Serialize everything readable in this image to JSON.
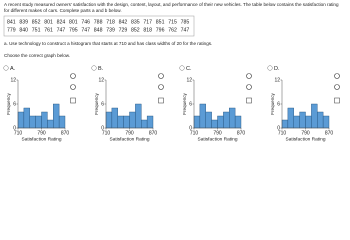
{
  "question": {
    "intro": [
      "A recent study measured owners' satisfaction with the design, content, layout, and performance of their new vehicles. The table below contains the satisfaction rating",
      "for different makes of cars. Complete parts a and b below."
    ],
    "table": {
      "rows": [
        [
          841,
          839,
          852,
          801,
          824,
          801,
          746,
          788,
          718,
          842,
          835,
          717,
          851,
          715,
          785
        ],
        [
          779,
          840,
          751,
          761,
          747,
          795,
          747,
          848,
          739,
          729,
          852,
          818,
          796,
          762,
          747
        ]
      ]
    },
    "part_a": "a. Use technology to construct a histogram that starts at 710 and has class widths of 20 for the ratings.",
    "choose": "Choose the correct graph below."
  },
  "chart_data": [
    {
      "type": "histogram",
      "label": "A.",
      "xlabel": "Satisfaction Rating",
      "ylabel": "Frequency",
      "bins": [
        710,
        730,
        750,
        770,
        790,
        810,
        830,
        850,
        870
      ],
      "values": [
        4,
        5,
        3,
        3,
        4,
        2,
        6,
        3
      ],
      "color": "#5b9bd5",
      "xlim": [
        710,
        870
      ],
      "xticks": [
        710,
        790,
        870
      ],
      "ylim": [
        0,
        12
      ],
      "yticks": [
        0,
        6,
        12
      ]
    },
    {
      "type": "histogram",
      "label": "B.",
      "xlabel": "Satisfaction Rating",
      "ylabel": "Frequency",
      "bins": [
        710,
        730,
        750,
        770,
        790,
        810,
        830,
        850,
        870
      ],
      "values": [
        4,
        5,
        3,
        3,
        4,
        6,
        2,
        3
      ],
      "color": "#5b9bd5",
      "xlim": [
        710,
        870
      ],
      "xticks": [
        710,
        790,
        870
      ],
      "ylim": [
        0,
        12
      ],
      "yticks": [
        0,
        6,
        12
      ]
    },
    {
      "type": "histogram",
      "label": "C.",
      "xlabel": "Satisfaction Rating",
      "ylabel": "Frequency",
      "bins": [
        710,
        730,
        750,
        770,
        790,
        810,
        830,
        850,
        870
      ],
      "values": [
        3,
        6,
        4,
        2,
        3,
        4,
        5,
        3
      ],
      "color": "#5b9bd5",
      "xlim": [
        710,
        870
      ],
      "xticks": [
        710,
        790,
        870
      ],
      "ylim": [
        0,
        12
      ],
      "yticks": [
        0,
        6,
        12
      ]
    },
    {
      "type": "histogram",
      "label": "D.",
      "xlabel": "Satisfaction Rating",
      "ylabel": "Frequency",
      "bins": [
        710,
        730,
        750,
        770,
        790,
        810,
        830,
        850,
        870
      ],
      "values": [
        2,
        5,
        3,
        4,
        3,
        6,
        4,
        3
      ],
      "color": "#5b9bd5",
      "xlim": [
        710,
        870
      ],
      "xticks": [
        710,
        790,
        870
      ],
      "ylim": [
        0,
        12
      ],
      "yticks": [
        0,
        6,
        12
      ]
    }
  ]
}
